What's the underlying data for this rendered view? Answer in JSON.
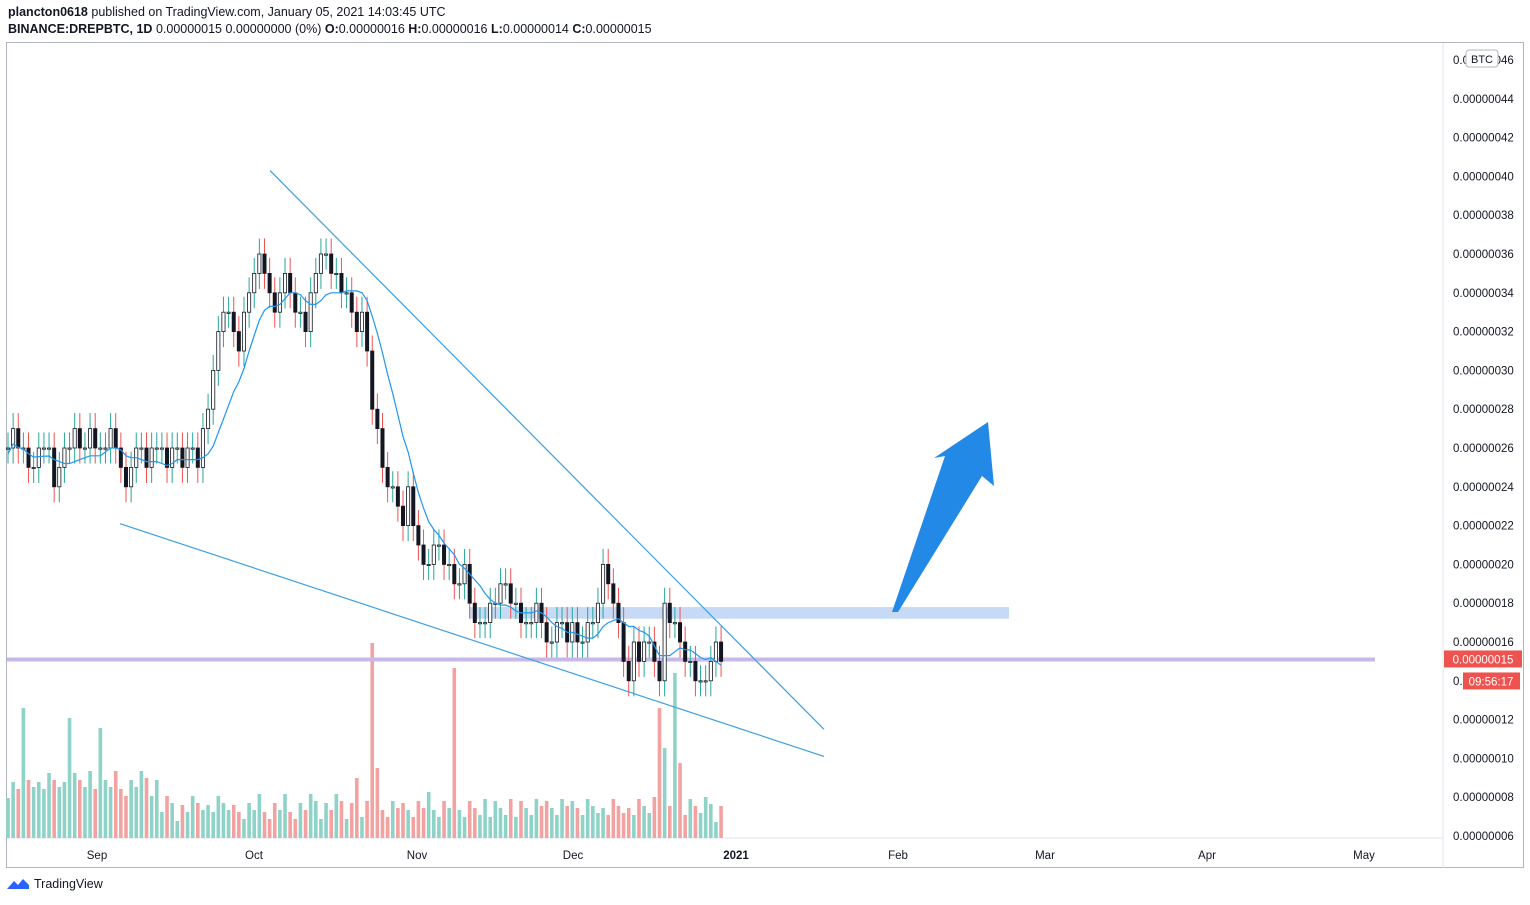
{
  "header": {
    "line1_user": "plancton0618",
    "line1_rest": "published on TradingView.com, January 05, 2021 14:03:45 UTC",
    "symbol": "BINANCE:DREPBTC, 1D",
    "change": "0.00000015 0.00000000 (0%)",
    "o_label": "O:",
    "o_value": "0.00000016",
    "h_label": "H:",
    "h_value": "0.00000016",
    "l_label": "L:",
    "l_value": "0.00000014",
    "c_label": "C:",
    "c_value": "0.00000015"
  },
  "footer": {
    "brand": "TradingView"
  },
  "colors": {
    "up": "#131722",
    "down": "#e04a4a",
    "wick_up": "#26a69a",
    "wick_down": "#ef5350",
    "vol_up": "#8fd3c8",
    "vol_down": "#f3a2a2",
    "ma": "#2196f3",
    "trend": "#3aa0e6",
    "zone": "#bcd4f3",
    "hline": "#c8b8e8",
    "arrow": "#2289e6",
    "price_tag": "#ef5350"
  },
  "chart_data": {
    "type": "candlestick",
    "title": "",
    "xlabel": "",
    "ylabel": "",
    "currency_label": "BTC",
    "x_tick_labels": [
      "Sep",
      "Oct",
      "Nov",
      "Dec",
      "2021",
      "Feb",
      "Mar",
      "Apr",
      "May"
    ],
    "y_tick_labels": [
      "0.00000046",
      "0.00000044",
      "0.00000042",
      "0.00000040",
      "0.00000038",
      "0.00000036",
      "0.00000034",
      "0.00000032",
      "0.00000030",
      "0.00000028",
      "0.00000026",
      "0.00000024",
      "0.00000022",
      "0.00000020",
      "0.00000018",
      "0.00000016",
      "0.00000014",
      "0.00000012",
      "0.00000010",
      "0.00000008",
      "0.00000006"
    ],
    "ylim": [
      6e-08,
      4.6e-07
    ],
    "last_price_label": "0.00000015",
    "countdown_label": "09:56:17",
    "close_series": [
      26,
      27,
      26,
      26,
      25,
      25,
      26,
      26,
      26,
      24,
      25,
      26,
      26,
      27,
      26,
      26,
      27,
      26,
      26,
      26,
      27,
      26,
      25,
      24,
      25,
      26,
      26,
      25,
      26,
      26,
      26,
      25,
      26,
      26,
      25,
      26,
      26,
      25,
      27,
      28,
      30,
      32,
      33,
      33,
      32,
      31,
      33,
      34,
      35,
      36,
      35,
      34,
      33,
      34,
      35,
      34,
      33,
      33,
      32,
      34,
      35,
      36,
      36,
      35,
      35,
      34,
      34,
      33,
      32,
      33,
      31,
      28,
      27,
      25,
      24,
      24,
      23,
      22,
      24,
      22,
      21,
      20,
      20,
      21,
      21,
      20,
      20,
      19,
      19,
      20,
      18,
      17,
      17,
      17,
      18,
      18,
      19,
      19,
      18,
      18,
      17,
      17,
      17,
      18,
      17,
      16,
      16,
      17,
      17,
      16,
      17,
      16,
      16,
      17,
      17,
      18,
      20,
      19,
      18,
      17,
      15,
      14,
      16,
      15,
      16,
      16,
      15,
      14,
      18,
      17,
      17,
      16,
      15,
      15,
      14,
      14,
      14,
      15,
      16,
      15
    ],
    "volume_shape": "bars under price, spike near late Oct and late Dec",
    "moving_average": "simple moving average, ~20 periods",
    "annotations": [
      {
        "type": "descending_trendline_upper",
        "from_date": "2020-10-06",
        "from_price": 4.03e-07,
        "to_date": "2021-01-18",
        "to_price": 1.15e-07
      },
      {
        "type": "descending_trendline_lower",
        "from_date": "2020-09-02",
        "from_price": 2.21e-07,
        "to_date": "2021-01-18",
        "to_price": 1.01e-07
      },
      {
        "type": "zone",
        "from_date": "2020-11-10",
        "to_date": "2021-02-26",
        "low": 1.72e-07,
        "high": 1.78e-07
      },
      {
        "type": "horizontal_line",
        "price": 1.51e-07
      },
      {
        "type": "arrow_up",
        "from_date": "2021-01-26",
        "from_price": 1.78e-07,
        "to_date": "2021-02-09",
        "to_price": 2.75e-07
      }
    ]
  }
}
